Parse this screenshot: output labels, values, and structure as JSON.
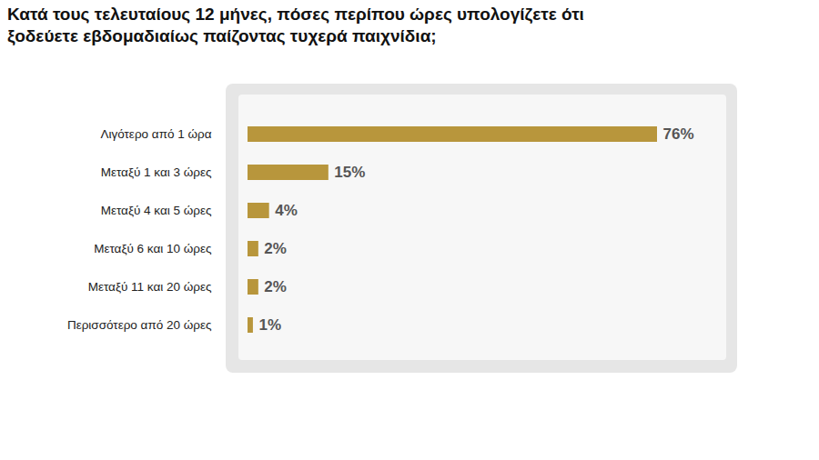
{
  "chart_data": {
    "type": "bar",
    "title": "Κατά τους τελευταίους 12 μήνες, πόσες περίπου ώρες υπολογίζετε ότι ξοδεύετε εβδομαδιαίως παίζοντας τυχερά παιχνίδια;",
    "orientation": "horizontal",
    "categories": [
      "Λιγότερο από 1 ώρα",
      "Μεταξύ 1 και 3 ώρες",
      "Μεταξύ 4 και 5 ώρες",
      "Μεταξύ 6 και 10 ώρες",
      "Μεταξύ 11 και 20 ώρες",
      "Περισσότερο από 20 ώρες"
    ],
    "values": [
      76,
      15,
      4,
      2,
      2,
      1
    ],
    "value_labels": [
      "76%",
      "15%",
      "4%",
      "2%",
      "2%",
      "1%"
    ],
    "color": "#b8963c",
    "data_labels": true,
    "tick_labels": "y",
    "grid": false
  }
}
